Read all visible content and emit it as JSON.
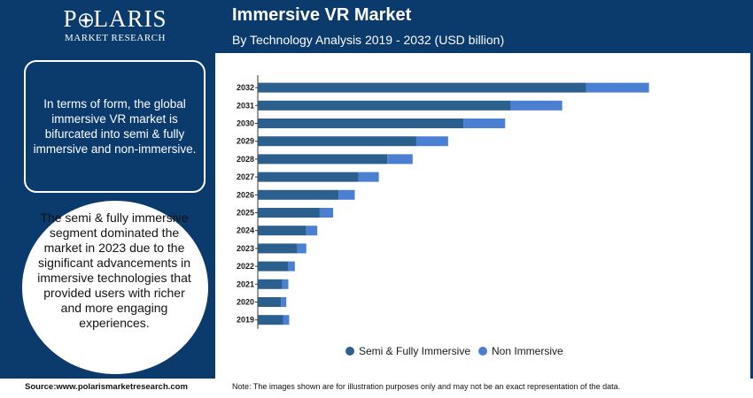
{
  "logo": {
    "name": "POLARIS",
    "tagline": "MARKET RESEARCH"
  },
  "header": {
    "title": "Immersive VR Market",
    "subtitle": "By Technology Analysis 2019 - 2032 (USD billion)"
  },
  "sidebar": {
    "box_text": "In terms of form, the global immersive VR market is bifurcated into semi & fully immersive and non-immersive.",
    "circle_text": "The semi & fully immersive segment dominated the market in 2023 due to the significant advancements in immersive technologies that provided users with richer and more engaging experiences."
  },
  "footer": {
    "source": "Source:www.polarismarketresearch.com",
    "note": "Note: The images shown are for illustration purposes only and may not be an exact representation of the data."
  },
  "colors": {
    "series1": "#2b5f8e",
    "series2": "#4a7fd1",
    "brand": "#0b3a6c"
  },
  "chart_data": {
    "type": "bar",
    "orientation": "horizontal",
    "stacked": true,
    "categories": [
      "2032",
      "2031",
      "2030",
      "2029",
      "2028",
      "2027",
      "2026",
      "2025",
      "2024",
      "2023",
      "2022",
      "2021",
      "2020",
      "2019"
    ],
    "series": [
      {
        "name": "Semi & Fully Immersive",
        "values": [
          80.6,
          62.1,
          50.5,
          38.9,
          31.8,
          24.7,
          19.8,
          15.2,
          11.9,
          9.7,
          7.4,
          6.0,
          5.7,
          6.2
        ]
      },
      {
        "name": "Non Immersive",
        "values": [
          15.4,
          12.6,
          10.2,
          7.8,
          6.2,
          5.0,
          4.0,
          3.3,
          2.7,
          2.2,
          1.7,
          1.5,
          1.3,
          1.5
        ]
      }
    ],
    "legend_position": "bottom",
    "grid": false,
    "xaxis_visible": false
  }
}
